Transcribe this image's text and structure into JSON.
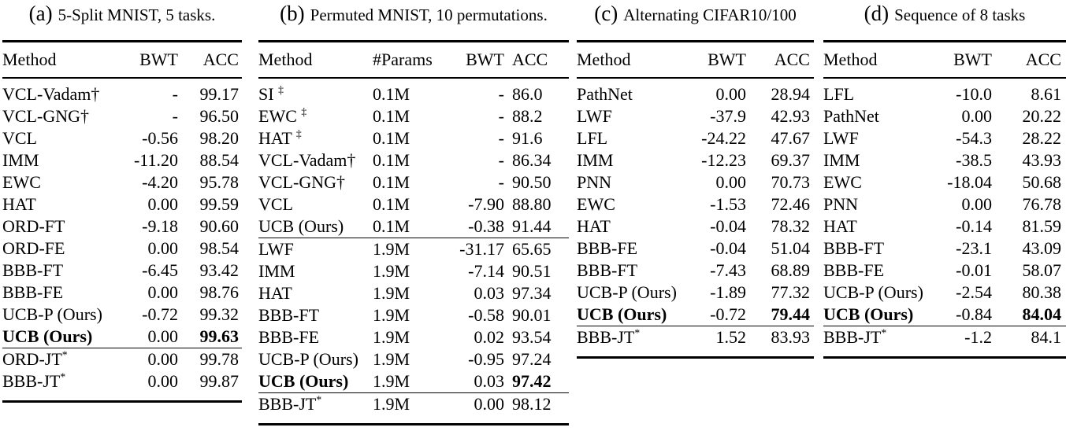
{
  "page": {
    "background": "#ffffff",
    "text_color": "#000000"
  },
  "tables": [
    {
      "id": "a",
      "caption": {
        "label": "(a)",
        "text": "5-Split MNIST, 5 tasks."
      },
      "fields": [
        "method",
        "bwt",
        "acc"
      ],
      "columns": [
        {
          "label": "Method"
        },
        {
          "label": "BWT"
        },
        {
          "label": "ACC"
        }
      ],
      "sections": [
        {
          "rows": [
            {
              "method": "VCL-Vadam†",
              "bwt": "-",
              "acc": "99.17"
            },
            {
              "method": "VCL-GNG†",
              "bwt": "-",
              "acc": "96.50"
            },
            {
              "method": "VCL",
              "bwt": "-0.56",
              "acc": "98.20"
            },
            {
              "method": "IMM",
              "bwt": "-11.20",
              "acc": "88.54"
            },
            {
              "method": "EWC",
              "bwt": "-4.20",
              "acc": "95.78"
            },
            {
              "method": "HAT",
              "bwt": "0.00",
              "acc": "99.59"
            },
            {
              "method": "ORD-FT",
              "bwt": "-9.18",
              "acc": "90.60"
            },
            {
              "method": "ORD-FE",
              "bwt": "0.00",
              "acc": "98.54"
            },
            {
              "method": "BBB-FT",
              "bwt": "-6.45",
              "acc": "93.42"
            },
            {
              "method": "BBB-FE",
              "bwt": "0.00",
              "acc": "98.76"
            },
            {
              "method": "UCB-P (Ours)",
              "bwt": "-0.72",
              "acc": "99.32"
            },
            {
              "method": "UCB (Ours)",
              "bold_method": true,
              "bwt": "0.00",
              "acc": "99.63",
              "bold_acc": true
            }
          ]
        },
        {
          "rows": [
            {
              "method": "ORD-JT",
              "sup": "*",
              "bwt": "0.00",
              "acc": "99.78"
            },
            {
              "method": "BBB-JT",
              "sup": "*",
              "bwt": "0.00",
              "acc": "99.87"
            }
          ]
        }
      ]
    },
    {
      "id": "b",
      "caption": {
        "label": "(b)",
        "text": "Permuted MNIST, 10 permutations."
      },
      "fields": [
        "method",
        "params",
        "bwt",
        "acc"
      ],
      "columns": [
        {
          "label": "Method"
        },
        {
          "label": "#Params"
        },
        {
          "label": "BWT"
        },
        {
          "label": "ACC"
        }
      ],
      "sections": [
        {
          "rows": [
            {
              "method": "SI ",
              "sup": "‡",
              "params": "0.1M",
              "bwt": "-",
              "acc": "86.0"
            },
            {
              "method": "EWC ",
              "sup": "‡",
              "params": "0.1M",
              "bwt": "-",
              "acc": "88.2"
            },
            {
              "method": "HAT ",
              "sup": "‡",
              "params": "0.1M",
              "bwt": "-",
              "acc": "91.6"
            },
            {
              "method": "VCL-Vadam†",
              "params": "0.1M",
              "bwt": "-",
              "acc": "86.34"
            },
            {
              "method": "VCL-GNG†",
              "params": "0.1M",
              "bwt": "-",
              "acc": "90.50"
            },
            {
              "method": "VCL",
              "params": "0.1M",
              "bwt": "-7.90",
              "acc": "88.80"
            },
            {
              "method": "UCB (Ours)",
              "params": "0.1M",
              "bwt": "-0.38",
              "acc": "91.44"
            }
          ]
        },
        {
          "rows": [
            {
              "method": "LWF",
              "params": "1.9M",
              "bwt": "-31.17",
              "acc": "65.65"
            },
            {
              "method": "IMM",
              "params": "1.9M",
              "bwt": "-7.14",
              "acc": "90.51"
            },
            {
              "method": "HAT",
              "params": "1.9M",
              "bwt": "0.03",
              "acc": "97.34"
            },
            {
              "method": "BBB-FT",
              "params": "1.9M",
              "bwt": "-0.58",
              "acc": "90.01"
            },
            {
              "method": "BBB-FE",
              "params": "1.9M",
              "bwt": "0.02",
              "acc": "93.54"
            },
            {
              "method": "UCB-P (Ours)",
              "params": "1.9M",
              "bwt": "-0.95",
              "acc": "97.24"
            },
            {
              "method": "UCB (Ours)",
              "bold_method": true,
              "params": "1.9M",
              "bwt": "0.03",
              "acc": "97.42",
              "bold_acc": true
            }
          ]
        },
        {
          "rows": [
            {
              "method": "BBB-JT",
              "sup": "*",
              "params": "1.9M",
              "bwt": "0.00",
              "acc": "98.12"
            }
          ]
        }
      ]
    },
    {
      "id": "c",
      "caption": {
        "label": "(c)",
        "text": "Alternating CIFAR10/100"
      },
      "fields": [
        "method",
        "bwt",
        "acc"
      ],
      "columns": [
        {
          "label": "Method"
        },
        {
          "label": "BWT"
        },
        {
          "label": "ACC"
        }
      ],
      "sections": [
        {
          "rows": [
            {
              "method": "PathNet",
              "bwt": "0.00",
              "acc": "28.94"
            },
            {
              "method": "LWF",
              "bwt": "-37.9",
              "acc": "42.93"
            },
            {
              "method": "LFL",
              "bwt": "-24.22",
              "acc": "47.67"
            },
            {
              "method": "IMM",
              "bwt": "-12.23",
              "acc": "69.37"
            },
            {
              "method": "PNN",
              "bwt": "0.00",
              "acc": "70.73"
            },
            {
              "method": "EWC",
              "bwt": "-1.53",
              "acc": "72.46"
            },
            {
              "method": "HAT",
              "bwt": "-0.04",
              "acc": "78.32"
            },
            {
              "method": "BBB-FE",
              "bwt": "-0.04",
              "acc": "51.04"
            },
            {
              "method": "BBB-FT",
              "bwt": "-7.43",
              "acc": "68.89"
            },
            {
              "method": "UCB-P (Ours)",
              "bwt": "-1.89",
              "acc": "77.32"
            },
            {
              "method": "UCB (Ours)",
              "bold_method": true,
              "bwt": "-0.72",
              "acc": "79.44",
              "bold_acc": true
            }
          ]
        },
        {
          "rows": [
            {
              "method": "BBB-JT",
              "sup": "*",
              "bwt": "1.52",
              "acc": "83.93"
            }
          ]
        }
      ]
    },
    {
      "id": "d",
      "caption": {
        "label": "(d)",
        "text": "Sequence of 8 tasks"
      },
      "fields": [
        "method",
        "bwt",
        "acc"
      ],
      "columns": [
        {
          "label": "Method"
        },
        {
          "label": "BWT"
        },
        {
          "label": "ACC"
        }
      ],
      "sections": [
        {
          "rows": [
            {
              "method": "LFL",
              "bwt": "-10.0",
              "acc": "8.61"
            },
            {
              "method": "PathNet",
              "bwt": "0.00",
              "acc": "20.22"
            },
            {
              "method": "LWF",
              "bwt": "-54.3",
              "acc": "28.22"
            },
            {
              "method": "IMM",
              "bwt": "-38.5",
              "acc": "43.93"
            },
            {
              "method": "EWC",
              "bwt": "-18.04",
              "acc": "50.68"
            },
            {
              "method": "PNN",
              "bwt": "0.00",
              "acc": "76.78"
            },
            {
              "method": "HAT",
              "bwt": "-0.14",
              "acc": "81.59"
            },
            {
              "method": "BBB-FT",
              "bwt": "-23.1",
              "acc": "43.09"
            },
            {
              "method": "BBB-FE",
              "bwt": "-0.01",
              "acc": "58.07"
            },
            {
              "method": "UCB-P (Ours)",
              "bwt": "-2.54",
              "acc": "80.38"
            },
            {
              "method": "UCB (Ours)",
              "bold_method": true,
              "bwt": "-0.84",
              "acc": "84.04",
              "bold_acc": true
            }
          ]
        },
        {
          "rows": [
            {
              "method": "BBB-JT",
              "sup": "*",
              "bwt": "-1.2",
              "acc": "84.1"
            }
          ]
        }
      ]
    }
  ]
}
